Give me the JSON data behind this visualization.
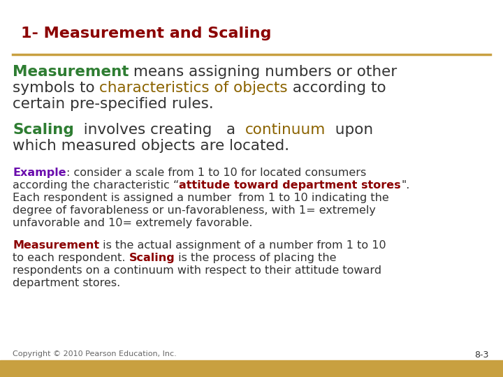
{
  "title": "1- Measurement and Scaling",
  "title_color": "#8B0000",
  "bg_color": "#FFFFFF",
  "bottom_bar_color": "#C8A040",
  "divider_color": "#C8A040",
  "footer_text": "Copyright © 2010 Pearson Education, Inc.",
  "page_number": "8-3",
  "green": "#2E7D32",
  "gold": "#8B6300",
  "purple": "#6A0DAD",
  "red": "#8B0000",
  "dark": "#333333"
}
